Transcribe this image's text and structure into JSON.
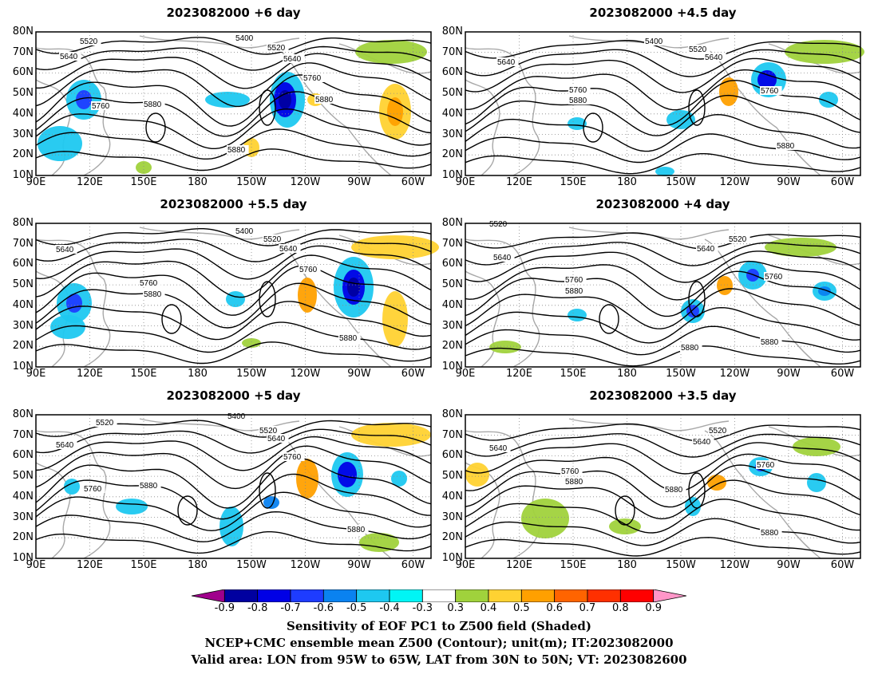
{
  "panels": [
    {
      "title": "2023082000  +6 day"
    },
    {
      "title": "2023082000  +4.5  day"
    },
    {
      "title": "2023082000  +5.5  day"
    },
    {
      "title": "2023082000  +4  day"
    },
    {
      "title": "2023082000  +5  day"
    },
    {
      "title": "2023082000  +3.5  day"
    }
  ],
  "lat_labels": [
    "80N",
    "70N",
    "60N",
    "50N",
    "40N",
    "30N",
    "20N",
    "10N"
  ],
  "lon_labels": [
    "90E",
    "120E",
    "150E",
    "180",
    "150W",
    "120W",
    "90W",
    "60W"
  ],
  "contour_labels": [
    "5400",
    "5520",
    "5640",
    "5760",
    "5880"
  ],
  "colorbar": {
    "labels": [
      "-0.9",
      "-0.8",
      "-0.7",
      "-0.6",
      "-0.5",
      "-0.4",
      "-0.3",
      "0.3",
      "0.4",
      "0.5",
      "0.6",
      "0.7",
      "0.8",
      "0.9"
    ],
    "colors": [
      "#a0008c",
      "#0000a0",
      "#0000e6",
      "#1e3cff",
      "#0a82f0",
      "#1ec8f0",
      "#00f5f5",
      "#ffffff",
      "#a0d23c",
      "#ffd232",
      "#ffa000",
      "#ff6400",
      "#ff3000",
      "#ff0000",
      "#ff96c8"
    ]
  },
  "captions": [
    "Sensitivity of EOF PC1 to Z500 field (Shaded)",
    "NCEP+CMC ensemble mean Z500 (Contour); unit(m); IT:2023082000",
    "Valid area: LON from 95W to 65W, LAT from 30N to 50N; VT: 2023082600"
  ]
}
